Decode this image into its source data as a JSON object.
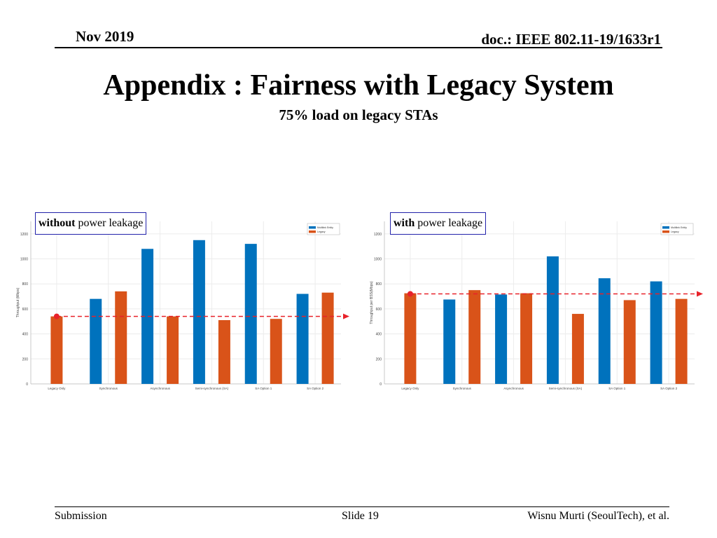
{
  "header": {
    "date": "Nov 2019",
    "doc": "doc.: IEEE 802.11-19/1633r1"
  },
  "slide": {
    "title": "Appendix : Fairness with Legacy System",
    "subtitle": "75% load on legacy STAs"
  },
  "colors": {
    "multi": "#0072BD",
    "legacy": "#D95319",
    "marker": "#e8222a"
  },
  "chart_data": [
    {
      "type": "bar",
      "label_bold": "without",
      "label_rest": " power leakage",
      "ylabel": "Throughput (Mbps)",
      "ylim": [
        0,
        1300
      ],
      "yticks": [
        0,
        200,
        400,
        600,
        800,
        1000,
        1200
      ],
      "categories": [
        "Legacy Only",
        "Synchronous",
        "Asynchronous",
        "Semi-synchronous (SA)",
        "SA Option 1",
        "SA Option 2"
      ],
      "series": [
        {
          "name": "Multilink Entity",
          "values": [
            null,
            680,
            1080,
            1150,
            1120,
            720
          ]
        },
        {
          "name": "Legacy",
          "values": [
            540,
            740,
            540,
            510,
            520,
            730
          ]
        }
      ],
      "reference_line": 540,
      "legend": "top-right",
      "grid": true
    },
    {
      "type": "bar",
      "label_bold": "with",
      "label_rest": " power leakage",
      "ylabel": "Throughput per BSS(Mbps)",
      "ylim": [
        0,
        1300
      ],
      "yticks": [
        0,
        200,
        400,
        600,
        800,
        1000,
        1200
      ],
      "categories": [
        "Legacy Only",
        "Synchronous",
        "Asynchronous",
        "Semi-synchronous (SA)",
        "SA Option 1",
        "SA Option 2"
      ],
      "series": [
        {
          "name": "Multilink Entity",
          "values": [
            null,
            675,
            715,
            1020,
            845,
            820
          ]
        },
        {
          "name": "Legacy",
          "values": [
            725,
            750,
            725,
            560,
            670,
            680
          ]
        }
      ],
      "reference_line": 720,
      "legend": "top-right",
      "grid": true
    }
  ],
  "footer": {
    "left": "Submission",
    "center": "Slide 19",
    "right": "Wisnu Murti (SeoulTech), et al."
  }
}
